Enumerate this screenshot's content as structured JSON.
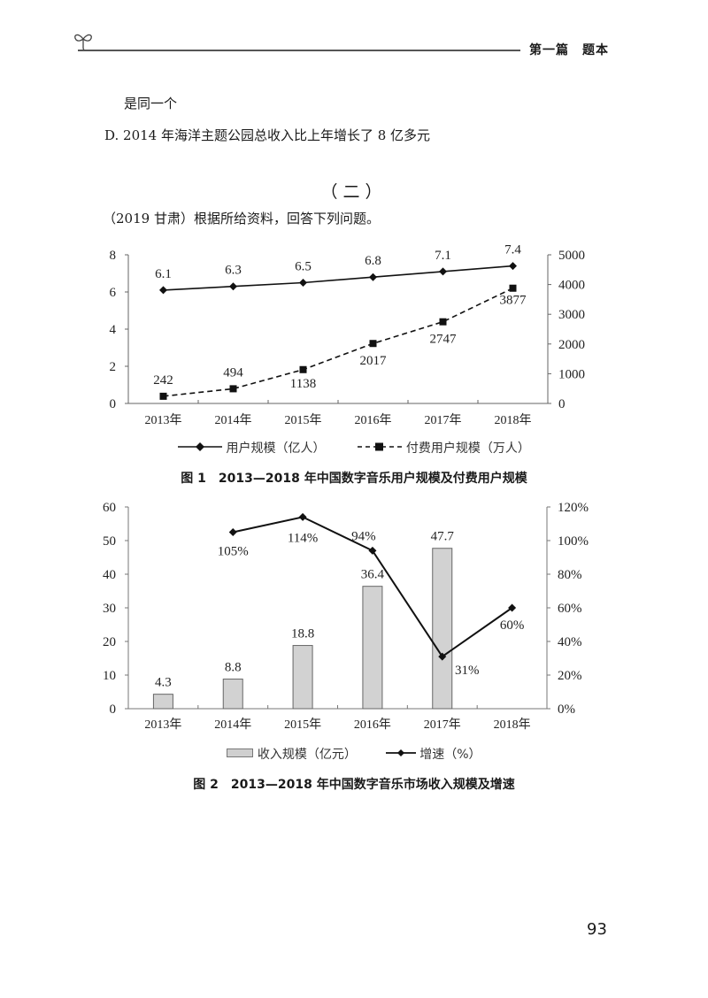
{
  "header": {
    "section": "第一篇　题本",
    "icon": "sprout-icon"
  },
  "body_text": {
    "line1": "是同一个",
    "line2": "D. 2014 年海洋主题公园总收入比上年增长了 8 亿多元",
    "section_heading": "（二）",
    "intro": "（2019  甘肃）根据所给资料，回答下列问题。"
  },
  "page_number": "93",
  "chart_data": [
    {
      "type": "line",
      "title": "图 1　2013—2018 年中国数字音乐用户规模及付费用户规模",
      "categories": [
        "2013年",
        "2014年",
        "2015年",
        "2016年",
        "2017年",
        "2018年"
      ],
      "series": [
        {
          "name": "用户规模（亿人）",
          "axis": "left",
          "style": "solid",
          "marker": "diamond",
          "values": [
            6.1,
            6.3,
            6.5,
            6.8,
            7.1,
            7.4
          ]
        },
        {
          "name": "付费用户规模（万人）",
          "axis": "right",
          "style": "dashed",
          "marker": "square",
          "values": [
            242,
            494,
            1138,
            2017,
            2747,
            3877
          ]
        }
      ],
      "y_left": {
        "ticks": [
          "0",
          "2",
          "4",
          "6",
          "8"
        ],
        "range": [
          0,
          8
        ]
      },
      "y_right": {
        "ticks": [
          "0",
          "1000",
          "2000",
          "3000",
          "4000",
          "5000"
        ],
        "range": [
          0,
          5000
        ]
      },
      "grid": false,
      "legend_position": "bottom",
      "legend": [
        "用户规模（亿人）",
        "付费用户规模（万人）"
      ]
    },
    {
      "type": "bar",
      "title": "图 2　2013—2018 年中国数字音乐市场收入规模及增速",
      "categories": [
        "2013年",
        "2014年",
        "2015年",
        "2016年",
        "2017年",
        "2018年"
      ],
      "series": [
        {
          "name": "收入规模（亿元）",
          "type": "bar",
          "axis": "left",
          "values": [
            4.3,
            8.8,
            18.8,
            36.4,
            47.7,
            null
          ],
          "labels": [
            "4.3",
            "8.8",
            "18.8",
            "36.4",
            "47.7",
            ""
          ]
        },
        {
          "name": "增速（%）",
          "type": "line",
          "axis": "right",
          "marker": "diamond",
          "values": [
            null,
            105,
            114,
            94,
            31,
            60
          ],
          "labels": [
            "",
            "105%",
            "114%",
            "94%",
            "31%",
            "60%"
          ]
        }
      ],
      "y_left": {
        "ticks": [
          "0",
          "10",
          "20",
          "30",
          "40",
          "50",
          "60"
        ],
        "range": [
          0,
          60
        ]
      },
      "y_right": {
        "ticks": [
          "0%",
          "20%",
          "40%",
          "60%",
          "80%",
          "100%",
          "120%"
        ],
        "range": [
          0,
          120
        ]
      },
      "grid": false,
      "legend_position": "bottom",
      "legend": [
        "收入规模（亿元）",
        "增速（%）"
      ]
    }
  ]
}
